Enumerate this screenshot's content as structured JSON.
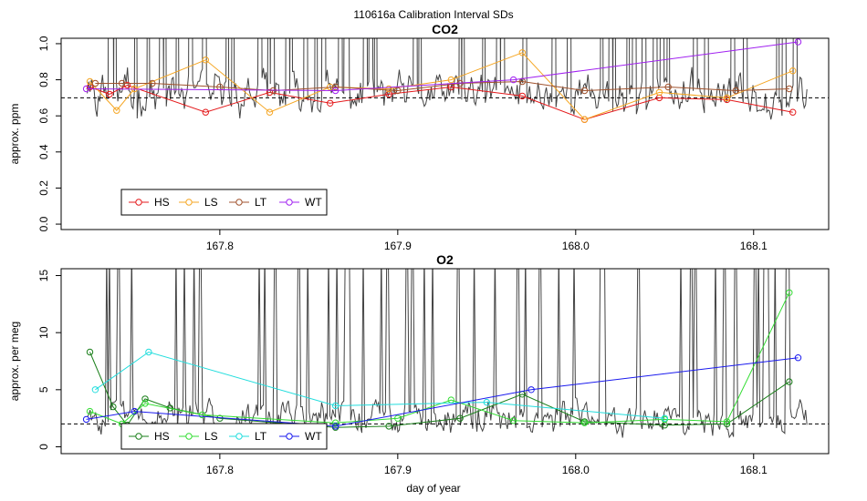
{
  "suptitle": "110616a   Calibration Interval SDs",
  "xlabel": "day of year",
  "chart_data": [
    {
      "type": "line",
      "title": "CO2",
      "ylabel": "approx. ppm",
      "xlim": [
        167.718,
        168.135
      ],
      "ylim": [
        -0.03,
        1.03
      ],
      "xticks": [
        167.8,
        167.9,
        168.0,
        168.1
      ],
      "xtick_labels": [
        "167.8",
        "167.9",
        "168.0",
        "168.1"
      ],
      "yticks": [
        0.0,
        0.2,
        0.4,
        0.6,
        0.8,
        1.0
      ],
      "ytick_labels": [
        "0.0",
        "0.2",
        "0.4",
        "0.6",
        "0.8",
        "1.0"
      ],
      "hline": 0.7,
      "legend_location": "bottom-left",
      "background_trace": {
        "color": "#444444",
        "baseline": 0.72,
        "noise": 0.07,
        "seed": 11,
        "spike_count": 54
      },
      "series": [
        {
          "name": "HS",
          "color": "#e41a1c",
          "x": [
            167.727,
            167.738,
            167.748,
            167.792,
            167.828,
            167.862,
            167.895,
            167.93,
            167.97,
            168.005,
            168.047,
            168.085,
            168.122
          ],
          "y": [
            0.76,
            0.72,
            0.77,
            0.62,
            0.73,
            0.67,
            0.72,
            0.76,
            0.71,
            0.58,
            0.7,
            0.69,
            0.62
          ]
        },
        {
          "name": "LS",
          "color": "#f5a623",
          "x": [
            167.727,
            167.742,
            167.752,
            167.792,
            167.828,
            167.862,
            167.895,
            167.93,
            167.97,
            168.005,
            168.047,
            168.085,
            168.122
          ],
          "y": [
            0.79,
            0.63,
            0.75,
            0.91,
            0.62,
            0.76,
            0.75,
            0.8,
            0.95,
            0.58,
            0.73,
            0.7,
            0.85
          ]
        },
        {
          "name": "LT",
          "color": "#a0522d",
          "x": [
            167.73,
            167.745,
            167.762,
            167.8,
            167.83,
            167.865,
            167.9,
            167.935,
            167.97,
            168.005,
            168.052,
            168.09,
            168.12
          ],
          "y": [
            0.78,
            0.78,
            0.78,
            0.76,
            0.74,
            0.76,
            0.74,
            0.78,
            0.79,
            0.74,
            0.76,
            0.74,
            0.75
          ]
        },
        {
          "name": "WT",
          "color": "#a020f0",
          "x": [
            167.725,
            167.865,
            167.965,
            168.125
          ],
          "y": [
            0.75,
            0.74,
            0.8,
            1.01
          ]
        }
      ]
    },
    {
      "type": "line",
      "title": "O2",
      "ylabel": "approx. per meg",
      "xlim": [
        167.718,
        168.135
      ],
      "ylim": [
        -0.6,
        15.6
      ],
      "xticks": [
        167.8,
        167.9,
        168.0,
        168.1
      ],
      "xtick_labels": [
        "167.8",
        "167.9",
        "168.0",
        "168.1"
      ],
      "yticks": [
        0,
        5,
        10,
        15
      ],
      "ytick_labels": [
        "0",
        "5",
        "10",
        "15"
      ],
      "hline": 2.0,
      "legend_location": "bottom-left",
      "background_trace": {
        "color": "#444444",
        "baseline": 2.6,
        "noise": 0.9,
        "seed": 29,
        "spike_count": 50
      },
      "series": [
        {
          "name": "HS",
          "color": "#1a7f1a",
          "x": [
            167.727,
            167.74,
            167.748,
            167.758,
            167.772,
            167.8,
            167.865,
            167.895,
            167.935,
            167.97,
            168.005,
            168.05,
            168.085,
            168.12
          ],
          "y": [
            8.3,
            3.5,
            1.9,
            4.2,
            3.4,
            2.5,
            1.7,
            1.8,
            2.5,
            4.6,
            2.2,
            1.9,
            2.0,
            5.7
          ]
        },
        {
          "name": "LS",
          "color": "#33dd33",
          "x": [
            167.727,
            167.745,
            167.758,
            167.79,
            167.865,
            167.9,
            167.93,
            167.965,
            168.005,
            168.05,
            168.085,
            168.12
          ],
          "y": [
            3.1,
            2.0,
            3.8,
            2.8,
            2.1,
            2.5,
            4.1,
            2.3,
            2.1,
            2.4,
            2.2,
            13.5
          ]
        },
        {
          "name": "LT",
          "color": "#22dddd",
          "x": [
            167.73,
            167.76,
            167.865,
            167.95,
            168.05
          ],
          "y": [
            5.0,
            8.3,
            3.6,
            3.9,
            2.5
          ]
        },
        {
          "name": "WT",
          "color": "#1a1aee",
          "x": [
            167.725,
            167.752,
            167.865,
            167.975,
            168.125
          ],
          "y": [
            2.4,
            3.1,
            1.8,
            5.0,
            7.8
          ]
        }
      ]
    }
  ]
}
